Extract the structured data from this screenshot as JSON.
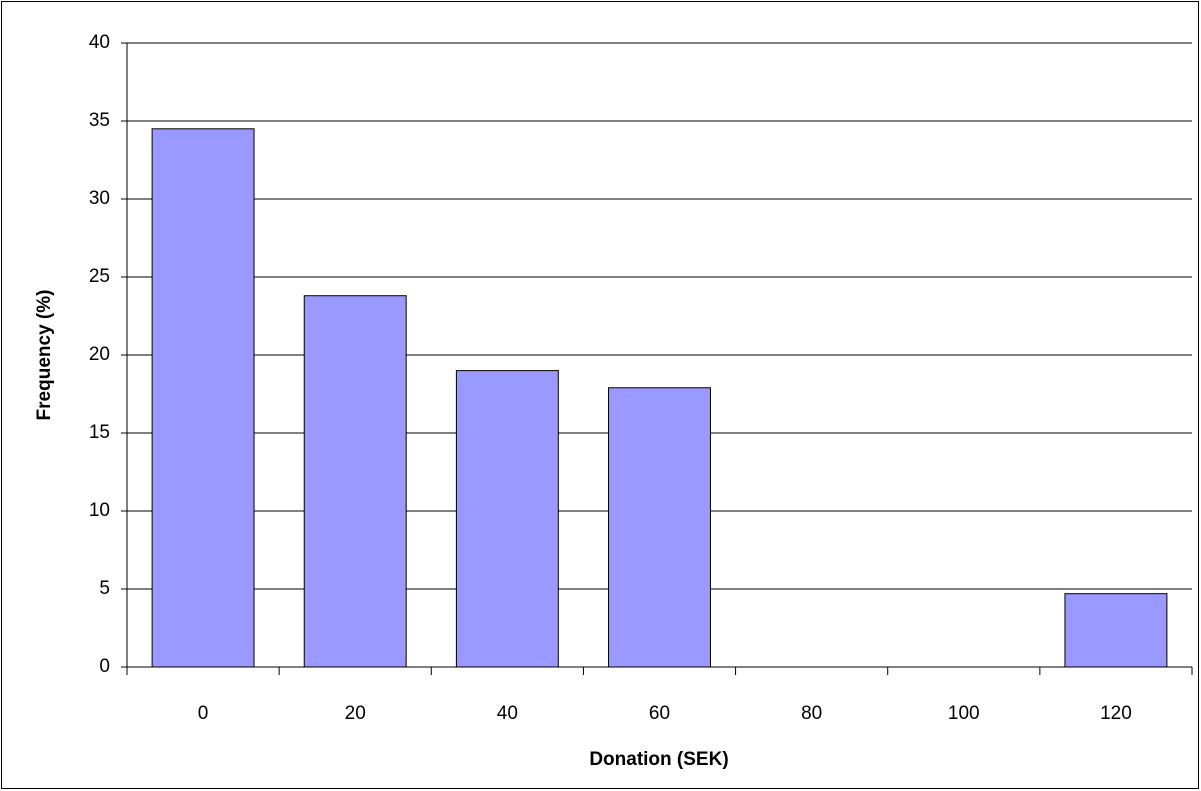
{
  "chart_data": {
    "type": "bar",
    "x_label": "Donation (SEK)",
    "y_label": "Frequency (%)",
    "categories": [
      "0",
      "20",
      "40",
      "60",
      "80",
      "100",
      "120"
    ],
    "values": [
      34.5,
      23.8,
      19,
      17.9,
      0,
      0,
      4.7
    ],
    "color": "#9999ff",
    "ylim": [
      0,
      40
    ],
    "yticks": [
      0,
      5,
      10,
      15,
      20,
      25,
      30,
      35,
      40
    ],
    "grid": true
  }
}
